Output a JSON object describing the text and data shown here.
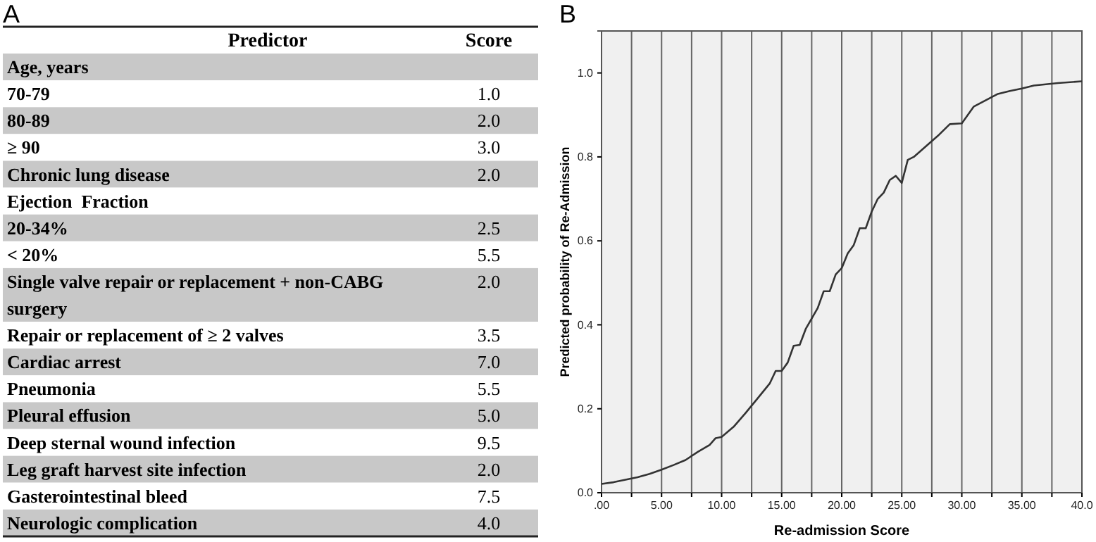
{
  "chart_data": [
    {
      "type": "other",
      "title": "A",
      "annotations": [
        "Predictor",
        "Score"
      ],
      "categories": [
        "Age, years",
        " 70-79",
        " 80-89",
        "≥ 90",
        "Chronic lung disease",
        "Ejection  Fraction",
        " 20-34%",
        " < 20%",
        "Single valve repair or replacement + non-CABG surgery",
        "Repair or replacement of ≥ 2 valves",
        "Cardiac arrest",
        "Pneumonia",
        "Pleural effusion",
        "Deep sternal wound infection",
        "Leg graft harvest site infection",
        "Gasterointestinal bleed",
        "Neurologic complication"
      ],
      "value_labels": [
        null,
        "1.0",
        "2.0",
        "3.0",
        "2.0",
        null,
        "2.5",
        "5.5",
        "2.0",
        "3.5",
        "7.0",
        "5.5",
        "5.0",
        "9.5",
        "2.0",
        "7.5",
        "4.0"
      ]
    },
    {
      "type": "line",
      "title": "B",
      "xlabel": "Re-admission Score",
      "ylabel": "Predicted probability of Re-Admission",
      "x": [
        0,
        1,
        2,
        3,
        4,
        5,
        6,
        7,
        8,
        9,
        9.5,
        10,
        11,
        12,
        13,
        14,
        14.5,
        15,
        15.5,
        16,
        16.5,
        17,
        18,
        18.5,
        19,
        19.5,
        20,
        20.5,
        21,
        21.5,
        22,
        22.5,
        23,
        23.5,
        24,
        24.5,
        25,
        25.5,
        26,
        27,
        28,
        29,
        30,
        31,
        32,
        33,
        34,
        35,
        36,
        37,
        38,
        40
      ],
      "series": [
        {
          "color": "#333333",
          "values": [
            0.021,
            0.025,
            0.031,
            0.037,
            0.045,
            0.055,
            0.066,
            0.078,
            0.097,
            0.114,
            0.13,
            0.133,
            0.157,
            0.19,
            0.225,
            0.26,
            0.29,
            0.29,
            0.31,
            0.35,
            0.352,
            0.39,
            0.44,
            0.48,
            0.48,
            0.52,
            0.535,
            0.57,
            0.59,
            0.63,
            0.63,
            0.67,
            0.7,
            0.715,
            0.745,
            0.755,
            0.738,
            0.793,
            0.8,
            0.825,
            0.85,
            0.878,
            0.88,
            0.92,
            0.935,
            0.95,
            0.957,
            0.963,
            0.97,
            0.973,
            0.976,
            0.98
          ]
        }
      ],
      "xlim": [
        0,
        40
      ],
      "xticks": [
        {
          "value": 0,
          "label": ".00"
        },
        {
          "value": 2.5,
          "label": null
        },
        {
          "value": 5,
          "label": "5.00"
        },
        {
          "value": 7.5,
          "label": null
        },
        {
          "value": 10,
          "label": "10.00"
        },
        {
          "value": 12.5,
          "label": null
        },
        {
          "value": 15,
          "label": "15.00"
        },
        {
          "value": 17.5,
          "label": null
        },
        {
          "value": 20,
          "label": "20.00"
        },
        {
          "value": 22.5,
          "label": null
        },
        {
          "value": 25,
          "label": "25.00"
        },
        {
          "value": 27.5,
          "label": null
        },
        {
          "value": 30,
          "label": "30.00"
        },
        {
          "value": 32.5,
          "label": null
        },
        {
          "value": 35,
          "label": "35.00"
        },
        {
          "value": 37.5,
          "label": null
        },
        {
          "value": 40,
          "label": "40.0"
        }
      ],
      "ylim": [
        0,
        1.1
      ],
      "yticks": [
        {
          "value": 0,
          "label": "0.0"
        },
        {
          "value": 0.2,
          "label": "0.2"
        },
        {
          "value": 0.4,
          "label": "0.4"
        },
        {
          "value": 0.6,
          "label": "0.6"
        },
        {
          "value": 0.8,
          "label": "0.8"
        },
        {
          "value": 1.0,
          "label": "1.0"
        }
      ],
      "grid": "x",
      "marker": "none",
      "line_style": "solid"
    }
  ]
}
